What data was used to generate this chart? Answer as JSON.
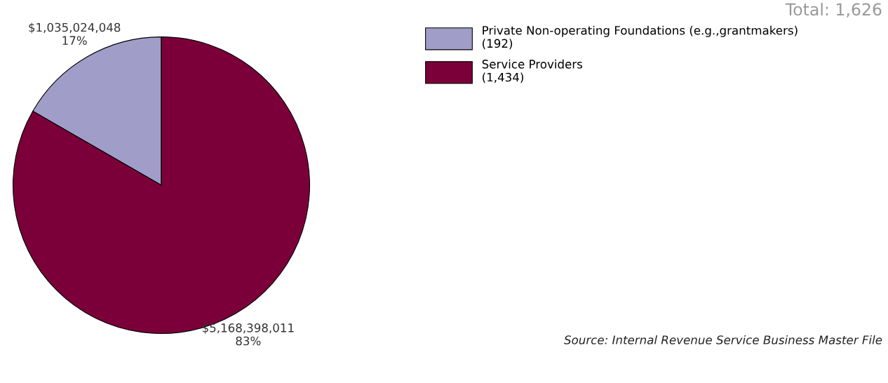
{
  "chart_data": {
    "type": "pie",
    "title": "Total: 1,626",
    "categories": [
      "Private Non-operating Foundations (e.g.,grantmakers)\n(192)",
      "Service Providers\n(1,434)"
    ],
    "values": [
      1035024048,
      5168398011
    ],
    "colors": [
      "#a09ec8",
      "#7b003a"
    ],
    "value_labels": [
      "$1,035,024,048\n17%",
      "$5,168,398,011\n83%"
    ],
    "legend": "top right",
    "annotations": [
      "Source: Internal Revenue Service Business Master File"
    ]
  }
}
